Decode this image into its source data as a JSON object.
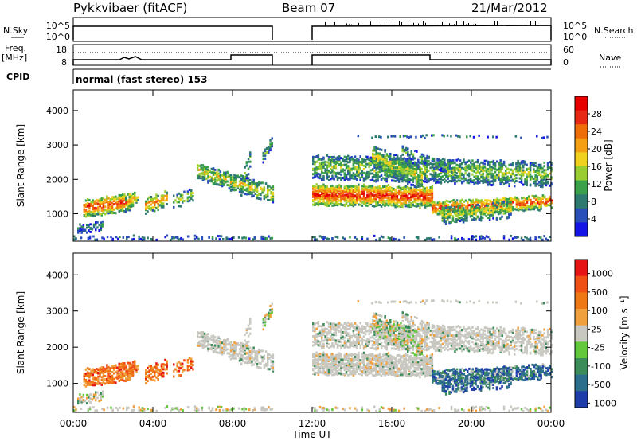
{
  "header": {
    "station": "Pykkvibaer (fitACF)",
    "beam": "Beam 07",
    "date": "21/Mar/2012"
  },
  "strips": {
    "nsky_label": "N.Sky",
    "nsky_ticks": [
      "10^5",
      "10^0"
    ],
    "nsearch_label": "N.Search",
    "nsearch_ticks": [
      "10^5",
      "10^0"
    ],
    "freq_label": "Freq.",
    "freq_unit": "[MHz]",
    "freq_ticks": [
      "18",
      "8"
    ],
    "nave_label": "Nave",
    "nave_ticks": [
      "60",
      "0"
    ],
    "cpid_label": "CPID",
    "cpid_text": "normal (fast stereo) 153"
  },
  "chart_data": [
    {
      "type": "heatmap",
      "name": "power-panel",
      "ylabel": "Slant Range [km]",
      "ylim": [
        200,
        4600
      ],
      "yticks": [
        "1000",
        "2000",
        "3000",
        "4000"
      ],
      "xlim_hours": [
        0,
        24
      ],
      "data_gap_hours": [
        10,
        12
      ],
      "colorbar": {
        "label": "Power [dB]",
        "ticks": [
          "4",
          "8",
          "12",
          "16",
          "20",
          "24",
          "28"
        ],
        "colors": [
          "#1414e6",
          "#2a4fb8",
          "#2f7a70",
          "#3aa04a",
          "#9acd32",
          "#f0d21e",
          "#f5a014",
          "#f06e0a",
          "#e62814",
          "#e60000"
        ]
      }
    },
    {
      "type": "heatmap",
      "name": "velocity-panel",
      "ylabel": "Slant Range [km]",
      "ylim": [
        200,
        4600
      ],
      "yticks": [
        "1000",
        "2000",
        "3000",
        "4000"
      ],
      "xlim_hours": [
        0,
        24
      ],
      "data_gap_hours": [
        10,
        12
      ],
      "colorbar": {
        "label": "Velocity [m s⁻¹]",
        "ticks": [
          "1000",
          "500",
          "100",
          "25",
          "-25",
          "-100",
          "-500",
          "-1000"
        ],
        "colors": [
          "#1e3caa",
          "#2d6e8c",
          "#3c8c5a",
          "#64c83c",
          "#c8c8c0",
          "#f0a03c",
          "#f07814",
          "#f05014",
          "#e61414"
        ]
      }
    }
  ],
  "xaxis": {
    "label": "Time UT",
    "ticks": [
      "00:00",
      "04:00",
      "08:00",
      "12:00",
      "16:00",
      "20:00",
      "00:00"
    ]
  },
  "colors": {
    "gray": "#c8c8c0"
  }
}
